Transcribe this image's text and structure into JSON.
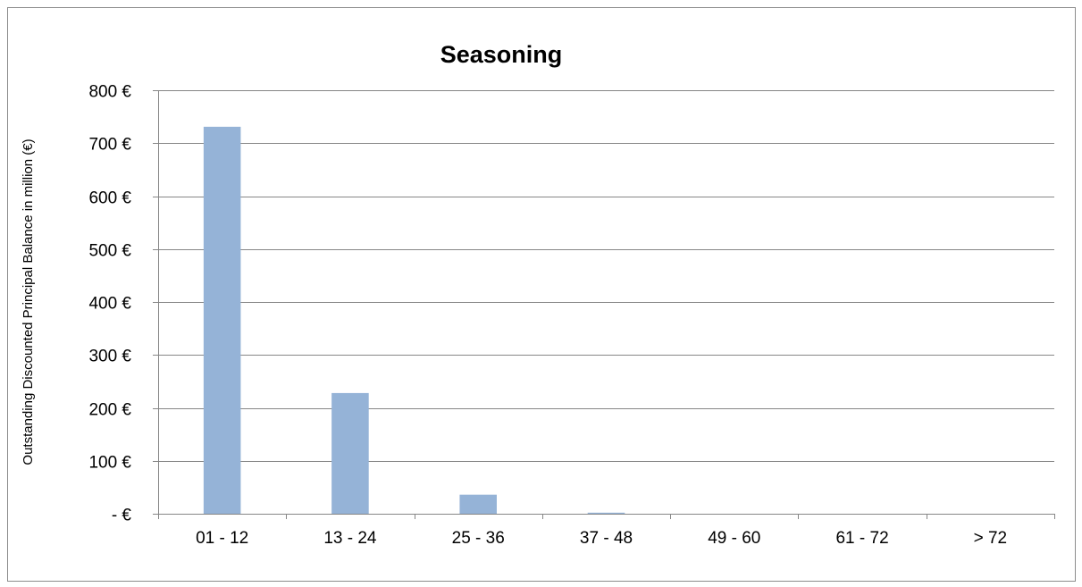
{
  "chart_data": {
    "type": "bar",
    "title": "Seasoning",
    "xlabel": "",
    "ylabel": "Outstanding Discounted Principal Balance in million (€)",
    "categories": [
      "01 - 12",
      "13 - 24",
      "25 - 36",
      "37 - 48",
      "49 - 60",
      "61 - 72",
      "> 72"
    ],
    "values": [
      731,
      228,
      36,
      2,
      0,
      0,
      0
    ],
    "ylim": [
      0,
      800
    ],
    "yticks": [
      0,
      100,
      200,
      300,
      400,
      500,
      600,
      700,
      800
    ],
    "ytick_labels": [
      "- €",
      "100 €",
      "200 €",
      "300 €",
      "400 €",
      "500 €",
      "600 €",
      "700 €",
      "800 €"
    ],
    "grid": "horizontal",
    "legend": "none",
    "colors": {
      "bar": "#95b3d7",
      "grid": "#868686",
      "axis": "#868686"
    }
  }
}
